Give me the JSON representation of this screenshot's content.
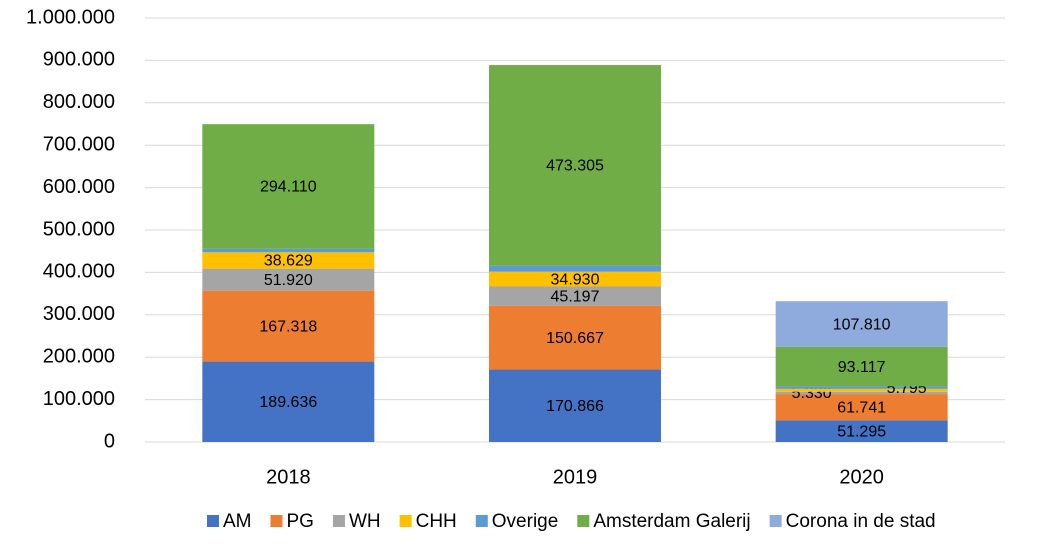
{
  "chart_data": {
    "type": "stacked_bar",
    "categories": [
      "2018",
      "2019",
      "2020"
    ],
    "series": [
      {
        "name": "AM",
        "color": "#4472c4",
        "values": [
          189636,
          170866,
          51295
        ],
        "value_labels": [
          "189.636",
          "170.866",
          "51.295"
        ]
      },
      {
        "name": "PG",
        "color": "#ed7d31",
        "values": [
          167318,
          150667,
          61741
        ],
        "value_labels": [
          "167.318",
          "150.667",
          "61.741"
        ]
      },
      {
        "name": "WH",
        "color": "#a5a5a5",
        "values": [
          51920,
          45197,
          5330
        ],
        "value_labels": [
          "51.920",
          "45.197",
          "5.330"
        ]
      },
      {
        "name": "CHH",
        "color": "#ffc000",
        "values": [
          38629,
          34930,
          7000
        ],
        "value_labels": [
          "38.629",
          "34.930",
          null
        ]
      },
      {
        "name": "Overige",
        "color": "#5b9bd5",
        "values": [
          8000,
          14000,
          5795
        ],
        "value_labels": [
          null,
          null,
          "5.795"
        ]
      },
      {
        "name": "Amsterdam Galerij",
        "color": "#70ad47",
        "values": [
          294110,
          473305,
          93117
        ],
        "value_labels": [
          "294.110",
          "473.305",
          "93.117"
        ]
      },
      {
        "name": "Corona in de stad",
        "color": "#8faadc",
        "values": [
          null,
          null,
          107810
        ],
        "value_labels": [
          null,
          null,
          "107.810"
        ]
      }
    ],
    "ylim": [
      0,
      1000000
    ],
    "yticks": [
      0,
      {
        "value": 100000,
        "label": "100.000"
      },
      {
        "value": 200000,
        "label": "200.000"
      },
      {
        "value": 300000,
        "label": "300.000"
      },
      {
        "value": 400000,
        "label": "400.000"
      },
      {
        "value": 500000,
        "label": "500.000"
      },
      {
        "value": 600000,
        "label": "600.000"
      },
      {
        "value": 700000,
        "label": "700.000"
      },
      {
        "value": 800000,
        "label": "800.000"
      },
      {
        "value": 900000,
        "label": "900.000"
      },
      {
        "value": 1000000,
        "label": "1.000.000"
      }
    ],
    "grid": true,
    "legend": "bottom"
  }
}
